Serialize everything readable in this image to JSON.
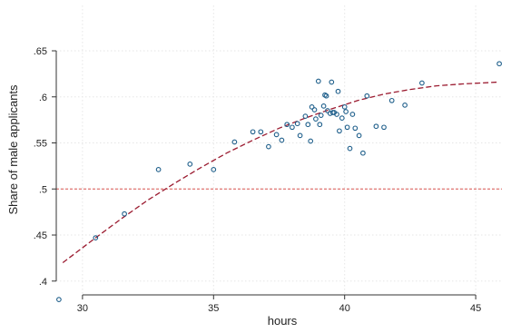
{
  "chart_data": {
    "type": "scatter",
    "xlabel": "hours",
    "ylabel": "Share of male applicants",
    "xlim": [
      29,
      46
    ],
    "ylim": [
      0.385,
      0.65
    ],
    "xticks": [
      30,
      35,
      40,
      45
    ],
    "xtick_labels": [
      "30",
      "35",
      "40",
      "45"
    ],
    "yticks": [
      0.4,
      0.45,
      0.5,
      0.55,
      0.6,
      0.65
    ],
    "ytick_labels": [
      ".4",
      ".45",
      ".5",
      ".55",
      ".6",
      ".65"
    ],
    "grid": true,
    "reference_line": {
      "y": 0.5,
      "color": "#d9534f",
      "style": "dashed"
    },
    "series": [
      {
        "type": "scatter",
        "color": "#1f5f8b",
        "points": [
          [
            29.1,
            0.38
          ],
          [
            30.5,
            0.447
          ],
          [
            31.6,
            0.473
          ],
          [
            32.9,
            0.521
          ],
          [
            34.1,
            0.527
          ],
          [
            35.0,
            0.521
          ],
          [
            35.8,
            0.551
          ],
          [
            36.5,
            0.562
          ],
          [
            36.8,
            0.562
          ],
          [
            37.1,
            0.546
          ],
          [
            37.4,
            0.559
          ],
          [
            37.6,
            0.553
          ],
          [
            37.8,
            0.57
          ],
          [
            38.0,
            0.567
          ],
          [
            38.2,
            0.571
          ],
          [
            38.3,
            0.558
          ],
          [
            38.5,
            0.579
          ],
          [
            38.6,
            0.57
          ],
          [
            38.7,
            0.552
          ],
          [
            38.75,
            0.589
          ],
          [
            38.85,
            0.586
          ],
          [
            38.9,
            0.576
          ],
          [
            39.0,
            0.617
          ],
          [
            39.05,
            0.57
          ],
          [
            39.1,
            0.58
          ],
          [
            39.2,
            0.59
          ],
          [
            39.25,
            0.602
          ],
          [
            39.3,
            0.601
          ],
          [
            39.35,
            0.585
          ],
          [
            39.45,
            0.582
          ],
          [
            39.5,
            0.616
          ],
          [
            39.55,
            0.583
          ],
          [
            39.6,
            0.583
          ],
          [
            39.7,
            0.581
          ],
          [
            39.75,
            0.606
          ],
          [
            39.8,
            0.563
          ],
          [
            39.9,
            0.577
          ],
          [
            40.0,
            0.589
          ],
          [
            40.05,
            0.584
          ],
          [
            40.1,
            0.567
          ],
          [
            40.2,
            0.544
          ],
          [
            40.3,
            0.581
          ],
          [
            40.4,
            0.566
          ],
          [
            40.55,
            0.558
          ],
          [
            40.7,
            0.539
          ],
          [
            40.85,
            0.601
          ],
          [
            41.2,
            0.568
          ],
          [
            41.5,
            0.567
          ],
          [
            41.8,
            0.596
          ],
          [
            42.3,
            0.591
          ],
          [
            42.95,
            0.615
          ],
          [
            45.9,
            0.636
          ]
        ]
      },
      {
        "type": "line",
        "style": "dashed",
        "color": "#9b1b30",
        "points": [
          [
            29.25,
            0.42
          ],
          [
            30.5,
            0.447
          ],
          [
            31.5,
            0.468
          ],
          [
            32.5,
            0.488
          ],
          [
            33.5,
            0.506
          ],
          [
            34.5,
            0.523
          ],
          [
            35.5,
            0.539
          ],
          [
            36.5,
            0.553
          ],
          [
            37.5,
            0.566
          ],
          [
            38.5,
            0.577
          ],
          [
            39.5,
            0.587
          ],
          [
            40.5,
            0.596
          ],
          [
            41.5,
            0.603
          ],
          [
            42.5,
            0.608
          ],
          [
            43.5,
            0.612
          ],
          [
            44.5,
            0.614
          ],
          [
            45.85,
            0.616
          ]
        ]
      }
    ]
  }
}
